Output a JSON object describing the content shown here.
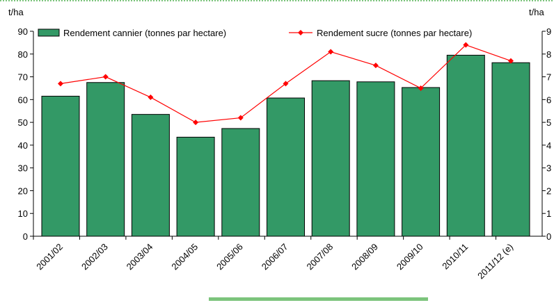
{
  "chart_data": {
    "type": "bar_line",
    "ylabel": "t/ha",
    "y2label": "t/ha",
    "categories": [
      "2001/02",
      "2002/03",
      "2003/04",
      "2004/05",
      "2005/06",
      "2006/07",
      "2007/08",
      "2008/09",
      "2009/10",
      "2010/11",
      "2011/12 (e)"
    ],
    "series": [
      {
        "name": "Rendement cannier (tonnes par hectare)",
        "color": "#339966",
        "type": "bar",
        "values": [
          61.5,
          67.5,
          53.5,
          43.5,
          47.3,
          60.7,
          68.3,
          67.8,
          65.3,
          79.5,
          76.2
        ]
      },
      {
        "name": "Rendement sucre (tonnes par hectare)",
        "color": "#ff0000",
        "type": "line",
        "axis": "y2",
        "values": [
          6.7,
          7.0,
          6.1,
          5.0,
          5.2,
          6.7,
          8.1,
          7.5,
          6.5,
          8.4,
          7.7
        ]
      }
    ],
    "ylim": [
      0,
      90
    ],
    "yticks": [
      0,
      10,
      20,
      30,
      40,
      50,
      60,
      70,
      80,
      90
    ],
    "y2lim": [
      0,
      9
    ],
    "y2ticks": [
      0,
      1,
      2,
      3,
      4,
      5,
      6,
      7,
      8,
      9
    ]
  }
}
